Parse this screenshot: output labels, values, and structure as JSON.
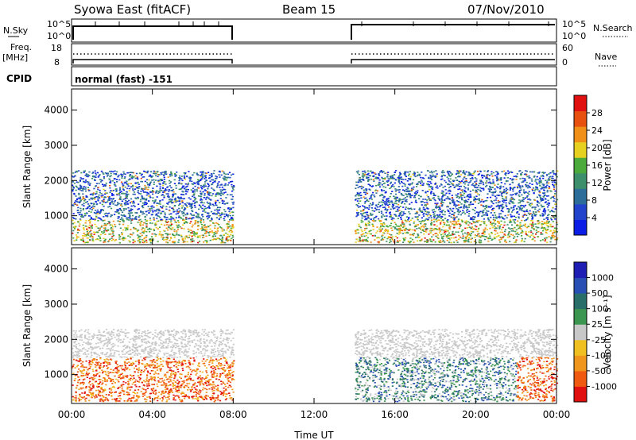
{
  "header": {
    "station": "Syowa East (fitACF)",
    "beam": "Beam 15",
    "date": "07/Nov/2010"
  },
  "strip_labels": {
    "nsky": "N.Sky",
    "nsky_ticks": [
      "10^5",
      "10^0"
    ],
    "nsearch": "N.Search",
    "nsearch_ticks": [
      "10^5",
      "10^0"
    ],
    "freq": "Freq.",
    "freq_unit": "[MHz]",
    "freq_ticks": [
      "18",
      "8"
    ],
    "nave": "Nave",
    "nave_ticks": [
      "60",
      "0"
    ],
    "cpid": "CPID",
    "cpid_value": "normal (fast) -151"
  },
  "colors": {
    "power": [
      "#0a1ee6",
      "#2244cc",
      "#2c6e99",
      "#3c8f6a",
      "#4caa3c",
      "#e6d020",
      "#f09018",
      "#e85010",
      "#e01010"
    ],
    "velocity": [
      "#e01010",
      "#f05a10",
      "#f0961c",
      "#f0c020",
      "#c8c8c8",
      "#3c9650",
      "#2a6e6a",
      "#2850b4",
      "#1e1eb4"
    ]
  },
  "chart_data": [
    {
      "type": "heatmap",
      "name": "power",
      "ylabel": "Slant Range [km]",
      "ylim": [
        180,
        4600
      ],
      "yticks": [
        1000,
        2000,
        3000,
        4000
      ],
      "xlim": [
        0,
        24
      ],
      "colorbar_label": "Power [dB]",
      "colorbar_ticks": [
        "4",
        "8",
        "12",
        "16",
        "20",
        "24",
        "28"
      ],
      "colorbar_range": [
        0,
        30
      ],
      "data_windows_ut": [
        [
          0,
          8
        ],
        [
          14,
          24
        ]
      ]
    },
    {
      "type": "heatmap",
      "name": "velocity",
      "xlabel": "Time UT",
      "ylabel": "Slant Range [km]",
      "ylim": [
        180,
        4600
      ],
      "yticks": [
        1000,
        2000,
        3000,
        4000
      ],
      "xlim": [
        0,
        24
      ],
      "xticks": [
        "00:00",
        "04:00",
        "08:00",
        "12:00",
        "16:00",
        "20:00",
        "00:00"
      ],
      "colorbar_label": "Velocity [m s⁻¹]",
      "colorbar_ticks": [
        "-1000",
        "-500",
        "-100",
        "-25",
        "25",
        "100",
        "500",
        "1000"
      ],
      "data_windows_ut": [
        [
          0,
          8
        ],
        [
          14,
          24
        ]
      ]
    }
  ]
}
